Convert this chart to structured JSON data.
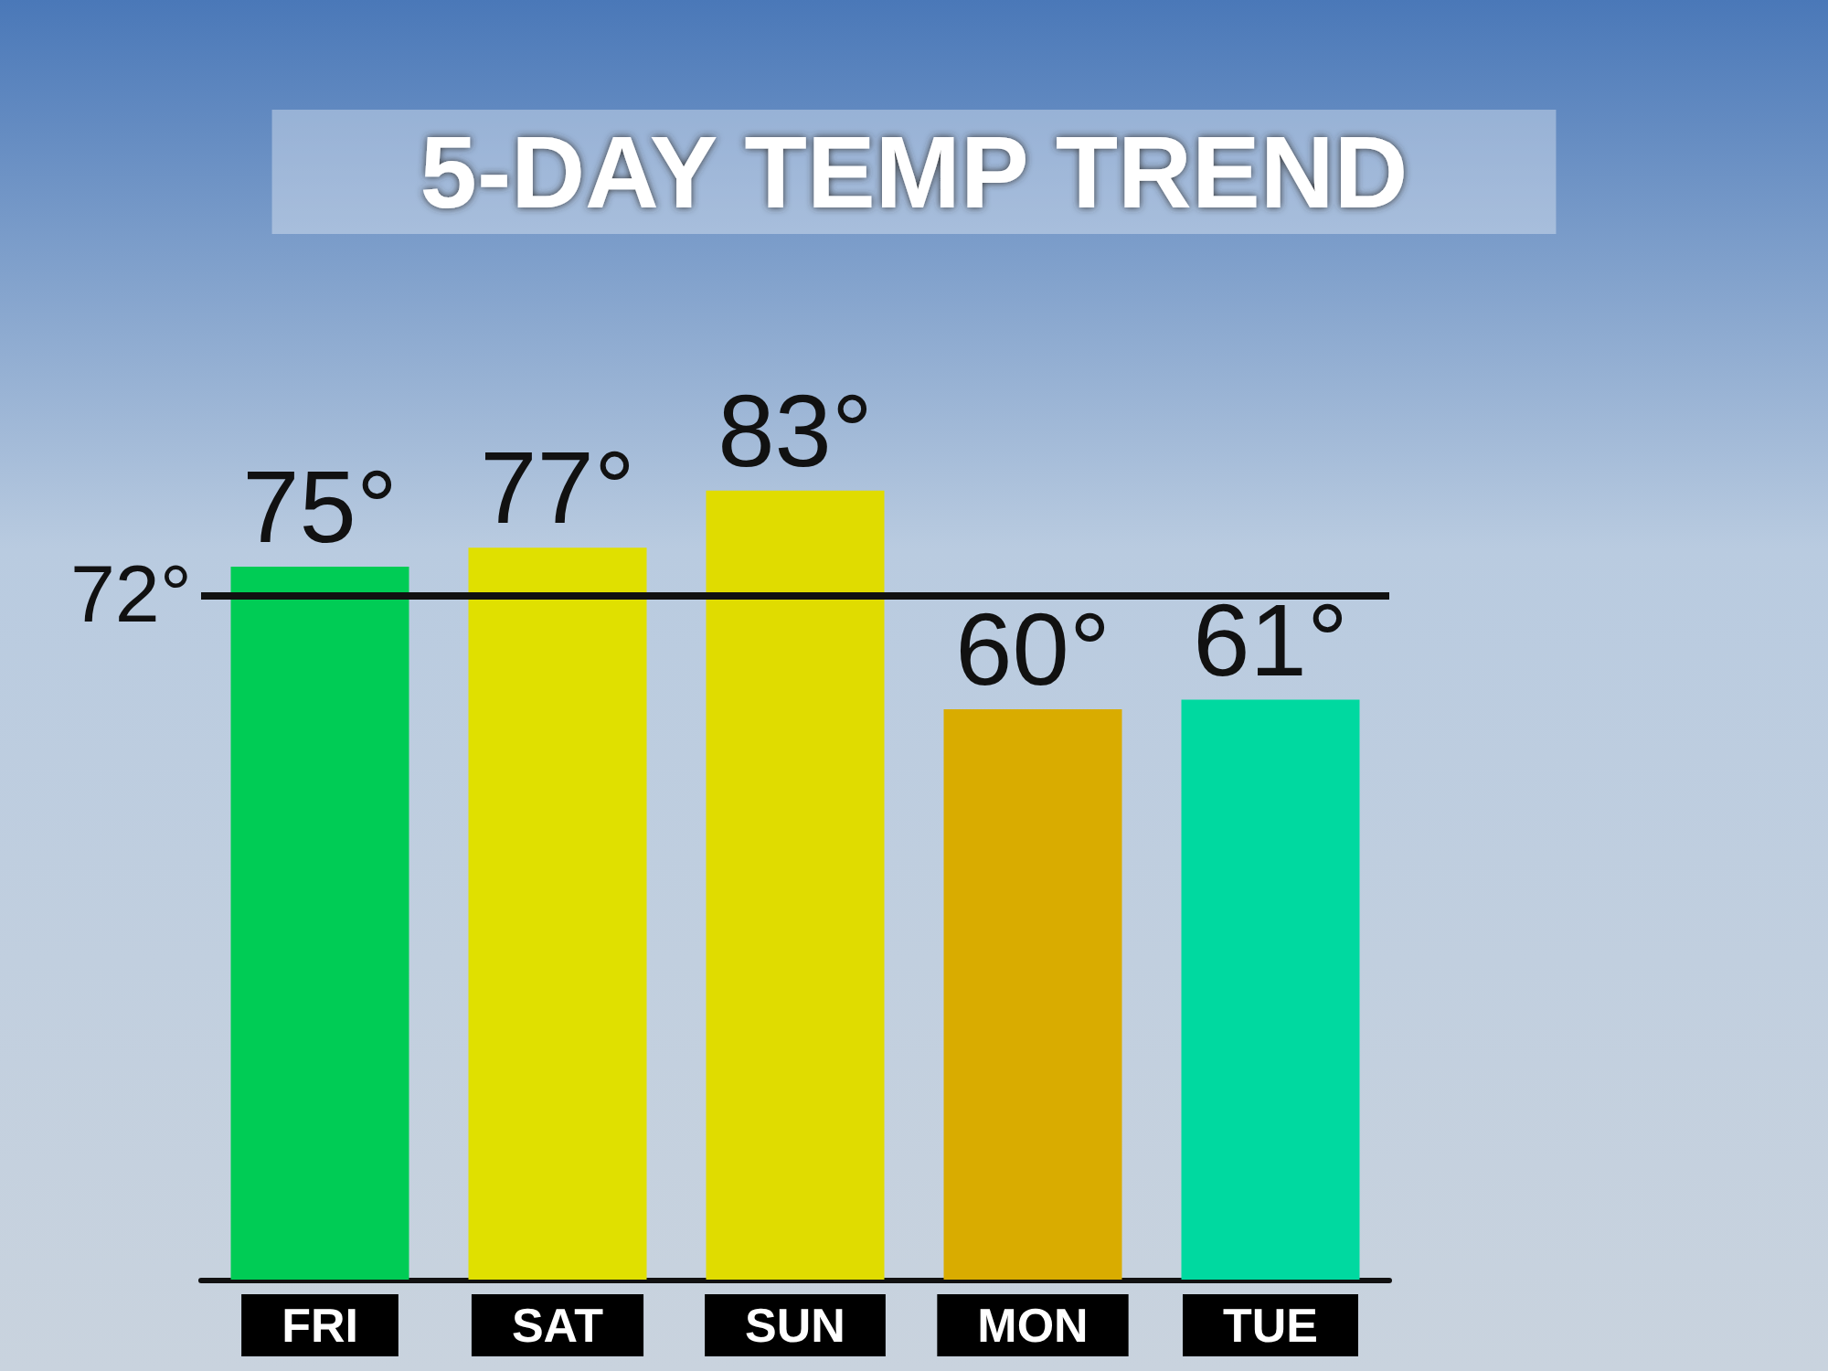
{
  "chart_data": {
    "type": "bar",
    "title": "5-DAY TEMP TREND",
    "categories": [
      "FRI",
      "SAT",
      "SUN",
      "MON",
      "TUE"
    ],
    "values": [
      75,
      77,
      83,
      60,
      61
    ],
    "colors": [
      "#00cc55",
      "#e0e000",
      "#e0dc00",
      "#d9ac00",
      "#00d9a0"
    ],
    "value_labels": [
      "75°",
      "77°",
      "83°",
      "60°",
      "61°"
    ],
    "ref_lines": [
      {
        "axis": "y",
        "value": 72,
        "label": "72°",
        "color": "#111111"
      }
    ]
  }
}
